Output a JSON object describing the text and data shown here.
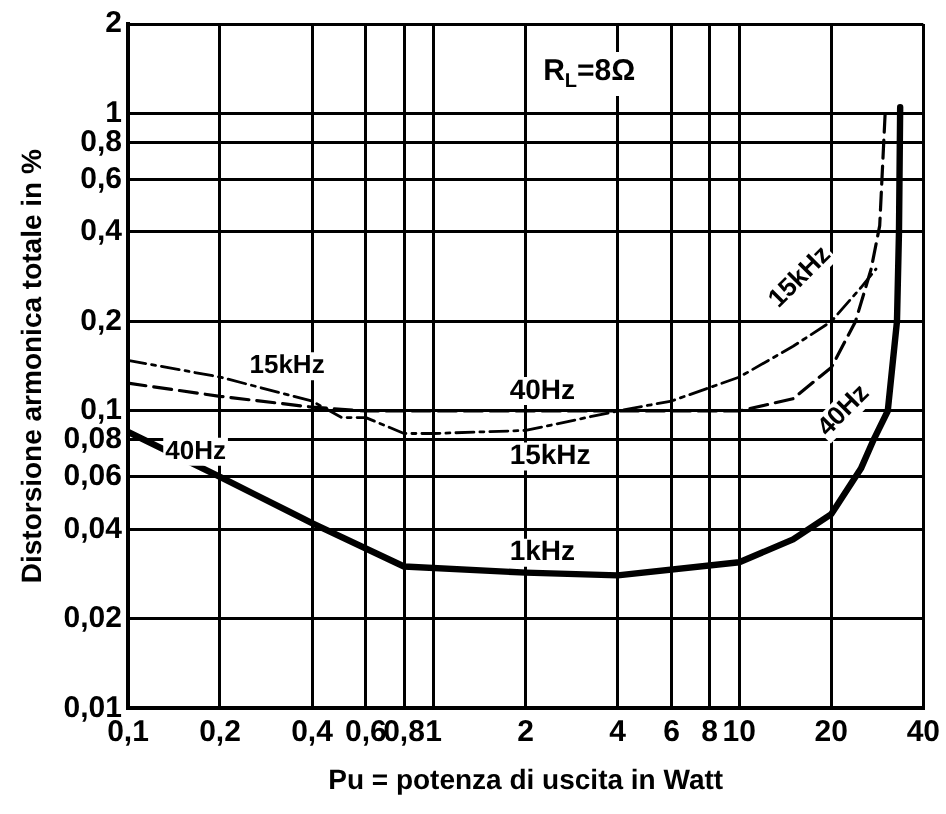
{
  "chart_data": {
    "type": "line",
    "xlabel": "Pu = potenza di uscita in Watt",
    "ylabel": "Distorsione armonica totale in %",
    "log": "xy",
    "grid": true,
    "legend": false,
    "marker": "none",
    "xlim": [
      0.1,
      40
    ],
    "ylim": [
      0.01,
      2
    ],
    "xticks": [
      {
        "value": 0.1,
        "label": "0,1"
      },
      {
        "value": 0.2,
        "label": "0,2"
      },
      {
        "value": 0.4,
        "label": "0,4"
      },
      {
        "value": 0.6,
        "label": "0,6"
      },
      {
        "value": 0.8,
        "label": "0,8"
      },
      1,
      2,
      4,
      6,
      8,
      10,
      20,
      40
    ],
    "yticks": [
      {
        "value": 0.01,
        "label": "0,01"
      },
      {
        "value": 0.02,
        "label": "0,02"
      },
      {
        "value": 0.04,
        "label": "0,04"
      },
      {
        "value": 0.06,
        "label": "0,06"
      },
      {
        "value": 0.08,
        "label": "0,08"
      },
      {
        "value": 0.1,
        "label": "0,1"
      },
      {
        "value": 0.2,
        "label": "0,2"
      },
      {
        "value": 0.4,
        "label": "0,4"
      },
      {
        "value": 0.6,
        "label": "0,6"
      },
      {
        "value": 0.8,
        "label": "0,8"
      },
      1,
      2
    ],
    "series": [
      {
        "name": "1kHz",
        "color": "#000000",
        "line_style": "solid",
        "x": [
          0.1,
          0.2,
          0.4,
          0.8,
          2,
          4,
          10,
          15,
          20,
          25,
          27.5,
          30.6,
          32.8,
          33.3,
          33.6
        ],
        "values": [
          0.085,
          0.06,
          0.042,
          0.03,
          0.0286,
          0.028,
          0.031,
          0.037,
          0.045,
          0.064,
          0.08,
          0.1,
          0.2,
          0.4,
          1.05
        ]
      },
      {
        "name": "40Hz",
        "color": "#000000",
        "line_style": "dashed",
        "x": [
          0.1,
          0.2,
          0.4,
          0.6,
          1,
          2,
          4,
          10,
          15,
          20,
          24,
          27,
          28.8,
          29.5,
          30
        ],
        "values": [
          0.124,
          0.112,
          0.103,
          0.1,
          0.1,
          0.1,
          0.1,
          0.1,
          0.11,
          0.14,
          0.2,
          0.3,
          0.42,
          0.7,
          1.0
        ]
      },
      {
        "name": "15kHz",
        "color": "#000000",
        "line_style": "dotted",
        "x": [
          0.1,
          0.2,
          0.4,
          0.5,
          0.6,
          0.8,
          1,
          2,
          4,
          6,
          10,
          15,
          20,
          25,
          28
        ],
        "values": [
          0.148,
          0.13,
          0.108,
          0.095,
          0.095,
          0.084,
          0.084,
          0.086,
          0.1,
          0.108,
          0.13,
          0.165,
          0.2,
          0.26,
          0.3
        ]
      }
    ],
    "annotations": [
      "R$_{L}$=8Ω",
      "15kHz",
      "40Hz",
      "15kHz",
      "40Hz"
    ]
  }
}
